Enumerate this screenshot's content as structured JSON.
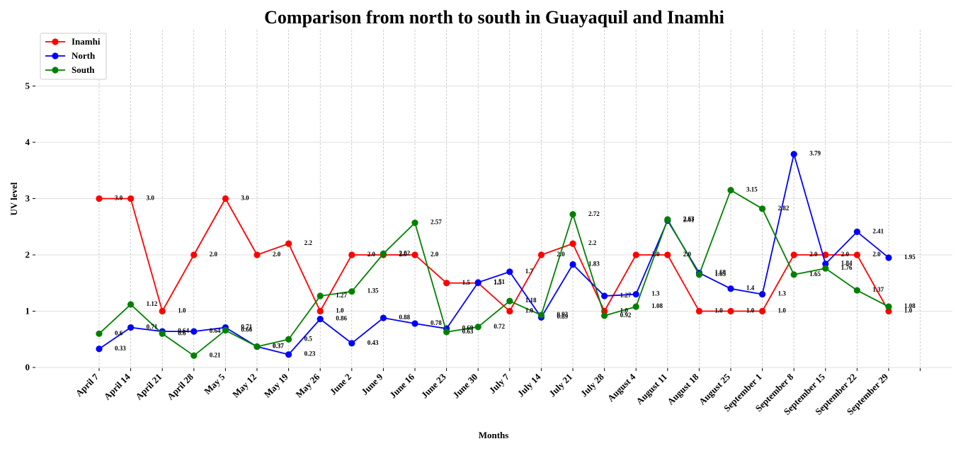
{
  "chart_data": {
    "type": "line",
    "title": "Comparison from north to south in Guayaquil and Inamhi",
    "xlabel": "Months",
    "ylabel": "UV level",
    "ylim": [
      0,
      6
    ],
    "yticks": [
      0,
      1,
      2,
      3,
      4,
      5
    ],
    "grid": true,
    "legend_position": "top-left",
    "categories": [
      "April 7",
      "April 14",
      "April 21",
      "April 28",
      "May 5",
      "May 12",
      "May 19",
      "May 26",
      "June 2",
      "June 9",
      "June 16",
      "June 23",
      "June 30",
      "July 7",
      "July 14",
      "July 21",
      "July 28",
      "August 4",
      "August 11",
      "August 18",
      "August 25",
      "September 1",
      "September 8",
      "September 15",
      "September 22",
      "September 29"
    ],
    "series": [
      {
        "name": "Inamhi",
        "color": "#ff0000",
        "values": [
          3.0,
          3.0,
          1.0,
          2.0,
          3.0,
          2.0,
          2.2,
          1.0,
          2.0,
          2.0,
          2.0,
          1.5,
          1.5,
          1.0,
          2.0,
          2.2,
          1.0,
          2.0,
          2.0,
          1.0,
          1.0,
          1.0,
          2.0,
          2.0,
          2.0,
          1.0
        ],
        "labels": [
          "3.0",
          "3.0",
          "1.0",
          "2.0",
          "3.0",
          "2.0",
          "2.2",
          "1.0",
          "2.0",
          "2.0",
          "2.0",
          "1.5",
          "1.5",
          "1.0",
          "2.0",
          "2.2",
          "1.0",
          "2.0",
          "2.0",
          "1.0",
          "1.0",
          "1.0",
          "2.0",
          "2.0",
          "2.0",
          "1.0"
        ]
      },
      {
        "name": "North",
        "color": "#0000ff",
        "values": [
          0.33,
          0.71,
          0.64,
          0.64,
          0.71,
          0.37,
          0.23,
          0.86,
          0.43,
          0.88,
          0.78,
          0.69,
          1.51,
          1.7,
          0.89,
          1.83,
          1.27,
          1.3,
          2.61,
          1.68,
          1.4,
          1.3,
          3.79,
          1.84,
          2.41,
          1.95
        ],
        "labels": [
          "0.33",
          "0.71",
          "0.64",
          "0.64",
          "0.71",
          "0.37",
          "0.23",
          "0.86",
          "0.43",
          "0.88",
          "0.78",
          "0.69",
          "1.51",
          "1.7",
          "0.89",
          "1.83",
          "1.27",
          "1.3",
          "2.61",
          "1.68",
          "1.4",
          "1.3",
          "3.79",
          "1.84",
          "2.41",
          "1.95"
        ]
      },
      {
        "name": "South",
        "color": "#008000",
        "values": [
          0.6,
          1.12,
          0.6,
          0.21,
          0.66,
          0.37,
          0.5,
          1.27,
          1.35,
          2.02,
          2.57,
          0.63,
          0.72,
          1.18,
          0.93,
          2.72,
          0.92,
          1.08,
          2.63,
          1.65,
          3.15,
          2.82,
          1.65,
          1.76,
          1.37,
          1.08
        ],
        "labels": [
          "0.6",
          "1.12",
          "0.6",
          "0.21",
          "0.66",
          "0.37",
          "0.5",
          "1.27",
          "1.35",
          "2.02",
          "2.57",
          "0.63",
          "0.72",
          "1.18",
          "0.93",
          "2.72",
          "0.92",
          "1.08",
          "2.63",
          "1.65",
          "3.15",
          "2.82",
          "1.65",
          "1.76",
          "1.37",
          "1.08"
        ]
      }
    ]
  }
}
